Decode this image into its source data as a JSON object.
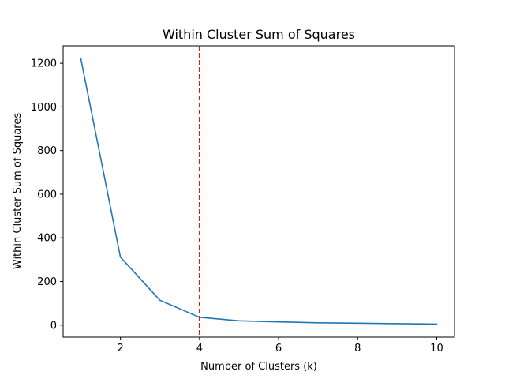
{
  "chart_data": {
    "type": "line",
    "title": "Within Cluster Sum of Squares",
    "xlabel": "Number of Clusters (k)",
    "ylabel": "Within Cluster Sum of Squares",
    "xlim": [
      0.55,
      10.45
    ],
    "ylim": [
      -55,
      1280
    ],
    "xticks": [
      2,
      4,
      6,
      8,
      10
    ],
    "xtick_labels": [
      "2",
      "4",
      "6",
      "8",
      "10"
    ],
    "yticks": [
      0,
      200,
      400,
      600,
      800,
      1000,
      1200
    ],
    "ytick_labels": [
      "0",
      "200",
      "400",
      "600",
      "800",
      "1000",
      "1200"
    ],
    "grid": false,
    "series": [
      {
        "x": [
          1,
          2,
          3,
          4,
          5,
          6,
          7,
          8,
          9,
          10
        ],
        "values": [
          1220,
          312,
          114,
          36,
          20,
          15,
          11,
          9,
          7,
          5
        ],
        "color": "#1f77b4"
      }
    ],
    "reference_line": {
      "orientation": "vertical",
      "x": 4,
      "style": "dashed",
      "color": "#ff0000"
    }
  }
}
